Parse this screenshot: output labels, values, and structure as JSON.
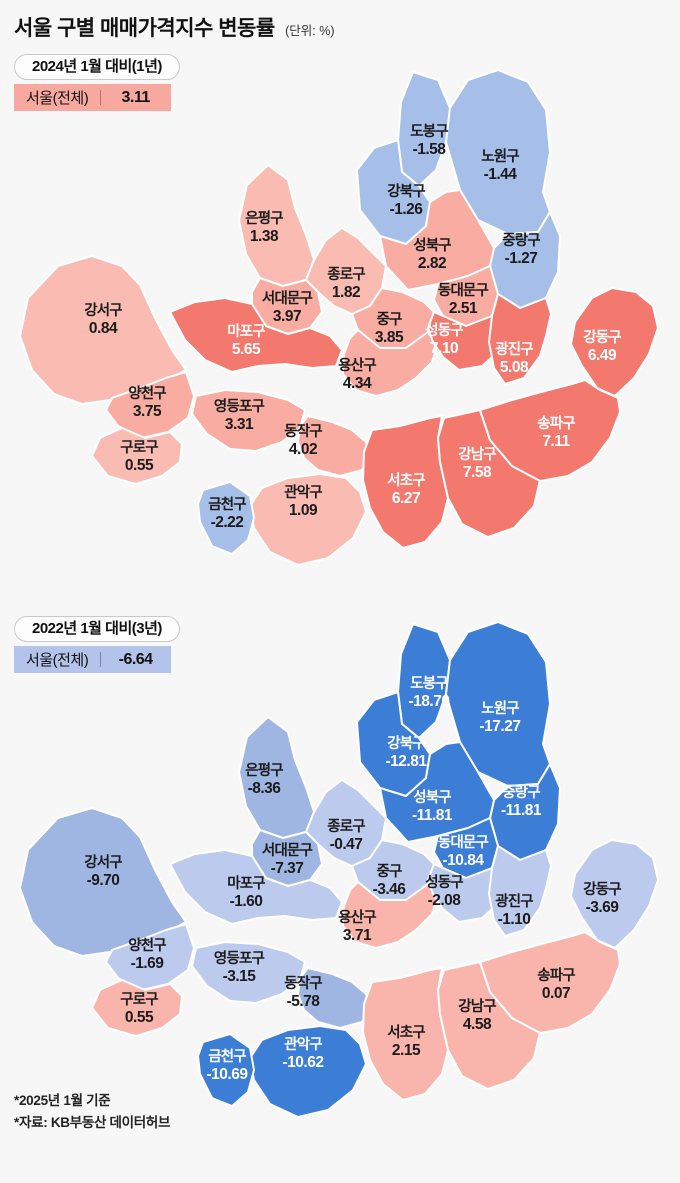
{
  "title": {
    "main": "서울 구별 매매가격지수 변동률",
    "unit": "(단위: %)"
  },
  "colors": {
    "background": "#f7f7f8",
    "map1_positive_high": "#f3786d",
    "map1_positive_mid": "#f8aca2",
    "map1_positive_low": "#fabcb2",
    "map1_negative": "#a6bfe8",
    "map2_negative_high": "#3c7ed6",
    "map2_negative_mid": "#9fb6e3",
    "map2_negative_low": "#bccaee",
    "map2_positive": "#f9b5ab",
    "border": "#ffffff"
  },
  "maps": [
    {
      "id": "map1",
      "badge": "2024년 1월 대비(1년)",
      "summary_label": "서울(전체)",
      "summary_value": "3.11",
      "summary_bg": "#f8a99f",
      "districts": [
        {
          "key": "dobong",
          "name": "도봉구",
          "value": "-1.58",
          "fill": "#a6bfe8",
          "text": "#1b1b1b"
        },
        {
          "key": "nowon",
          "name": "노원구",
          "value": "-1.44",
          "fill": "#a6bfe8",
          "text": "#1b1b1b"
        },
        {
          "key": "gangbuk",
          "name": "강북구",
          "value": "-1.26",
          "fill": "#a6bfe8",
          "text": "#1b1b1b"
        },
        {
          "key": "jungnang",
          "name": "중랑구",
          "value": "-1.27",
          "fill": "#a6bfe8",
          "text": "#1b1b1b"
        },
        {
          "key": "seongbuk",
          "name": "성북구",
          "value": "2.82",
          "fill": "#f8aca2",
          "text": "#1b1b1b"
        },
        {
          "key": "dongdaemun",
          "name": "동대문구",
          "value": "2.51",
          "fill": "#f8aca2",
          "text": "#1b1b1b"
        },
        {
          "key": "eunpyeong",
          "name": "은평구",
          "value": "1.38",
          "fill": "#fabcb2",
          "text": "#1b1b1b"
        },
        {
          "key": "jongno",
          "name": "종로구",
          "value": "1.82",
          "fill": "#fabcb2",
          "text": "#1b1b1b"
        },
        {
          "key": "seodaemun",
          "name": "서대문구",
          "value": "3.97",
          "fill": "#f8aca2",
          "text": "#1b1b1b"
        },
        {
          "key": "jung",
          "name": "중구",
          "value": "3.85",
          "fill": "#f8aca2",
          "text": "#1b1b1b"
        },
        {
          "key": "mapo",
          "name": "마포구",
          "value": "5.65",
          "fill": "#f3786d",
          "text": "#ffffff"
        },
        {
          "key": "yongsan",
          "name": "용산구",
          "value": "4.34",
          "fill": "#f8aca2",
          "text": "#1b1b1b"
        },
        {
          "key": "seongdong",
          "name": "성동구",
          "value": "7.10",
          "fill": "#f3786d",
          "text": "#ffffff"
        },
        {
          "key": "gwangjin",
          "name": "광진구",
          "value": "5.08",
          "fill": "#f3786d",
          "text": "#ffffff"
        },
        {
          "key": "gangdong",
          "name": "강동구",
          "value": "6.49",
          "fill": "#f3786d",
          "text": "#ffffff"
        },
        {
          "key": "gangseo",
          "name": "강서구",
          "value": "0.84",
          "fill": "#fabcb2",
          "text": "#1b1b1b"
        },
        {
          "key": "yangcheon",
          "name": "양천구",
          "value": "3.75",
          "fill": "#f8aca2",
          "text": "#1b1b1b"
        },
        {
          "key": "yeongdeungpo",
          "name": "영등포구",
          "value": "3.31",
          "fill": "#f8aca2",
          "text": "#1b1b1b"
        },
        {
          "key": "dongjak",
          "name": "동작구",
          "value": "4.02",
          "fill": "#f8aca2",
          "text": "#1b1b1b"
        },
        {
          "key": "gwanak",
          "name": "관악구",
          "value": "1.09",
          "fill": "#fabcb2",
          "text": "#1b1b1b"
        },
        {
          "key": "guro",
          "name": "구로구",
          "value": "0.55",
          "fill": "#fabcb2",
          "text": "#1b1b1b"
        },
        {
          "key": "geumcheon",
          "name": "금천구",
          "value": "-2.22",
          "fill": "#a6bfe8",
          "text": "#1b1b1b"
        },
        {
          "key": "seocho",
          "name": "서초구",
          "value": "6.27",
          "fill": "#f3786d",
          "text": "#ffffff"
        },
        {
          "key": "gangnam",
          "name": "강남구",
          "value": "7.58",
          "fill": "#f3786d",
          "text": "#ffffff"
        },
        {
          "key": "songpa",
          "name": "송파구",
          "value": "7.11",
          "fill": "#f3786d",
          "text": "#ffffff"
        }
      ]
    },
    {
      "id": "map2",
      "badge": "2022년 1월 대비(3년)",
      "summary_label": "서울(전체)",
      "summary_value": "-6.64",
      "summary_bg": "#b3c3ea",
      "districts": [
        {
          "key": "dobong",
          "name": "도봉구",
          "value": "-18.70",
          "fill": "#3c7ed6",
          "text": "#ffffff"
        },
        {
          "key": "nowon",
          "name": "노원구",
          "value": "-17.27",
          "fill": "#3c7ed6",
          "text": "#ffffff"
        },
        {
          "key": "gangbuk",
          "name": "강북구",
          "value": "-12.81",
          "fill": "#3c7ed6",
          "text": "#ffffff"
        },
        {
          "key": "jungnang",
          "name": "중랑구",
          "value": "-11.81",
          "fill": "#3c7ed6",
          "text": "#ffffff"
        },
        {
          "key": "seongbuk",
          "name": "성북구",
          "value": "-11.81",
          "fill": "#3c7ed6",
          "text": "#ffffff"
        },
        {
          "key": "dongdaemun",
          "name": "동대문구",
          "value": "-10.84",
          "fill": "#3c7ed6",
          "text": "#ffffff"
        },
        {
          "key": "eunpyeong",
          "name": "은평구",
          "value": "-8.36",
          "fill": "#9fb6e3",
          "text": "#1b1b1b"
        },
        {
          "key": "jongno",
          "name": "종로구",
          "value": "-0.47",
          "fill": "#bccaee",
          "text": "#1b1b1b"
        },
        {
          "key": "seodaemun",
          "name": "서대문구",
          "value": "-7.37",
          "fill": "#9fb6e3",
          "text": "#1b1b1b"
        },
        {
          "key": "jung",
          "name": "중구",
          "value": "-3.46",
          "fill": "#bccaee",
          "text": "#1b1b1b"
        },
        {
          "key": "mapo",
          "name": "마포구",
          "value": "-1.60",
          "fill": "#bccaee",
          "text": "#1b1b1b"
        },
        {
          "key": "yongsan",
          "name": "용산구",
          "value": "3.71",
          "fill": "#f9b5ab",
          "text": "#1b1b1b"
        },
        {
          "key": "seongdong",
          "name": "성동구",
          "value": "-2.08",
          "fill": "#bccaee",
          "text": "#1b1b1b"
        },
        {
          "key": "gwangjin",
          "name": "광진구",
          "value": "-1.10",
          "fill": "#bccaee",
          "text": "#1b1b1b"
        },
        {
          "key": "gangdong",
          "name": "강동구",
          "value": "-3.69",
          "fill": "#bccaee",
          "text": "#1b1b1b"
        },
        {
          "key": "gangseo",
          "name": "강서구",
          "value": "-9.70",
          "fill": "#9fb6e3",
          "text": "#1b1b1b"
        },
        {
          "key": "yangcheon",
          "name": "양천구",
          "value": "-1.69",
          "fill": "#bccaee",
          "text": "#1b1b1b"
        },
        {
          "key": "yeongdeungpo",
          "name": "영등포구",
          "value": "-3.15",
          "fill": "#bccaee",
          "text": "#1b1b1b"
        },
        {
          "key": "dongjak",
          "name": "동작구",
          "value": "-5.78",
          "fill": "#9fb6e3",
          "text": "#1b1b1b"
        },
        {
          "key": "gwanak",
          "name": "관악구",
          "value": "-10.62",
          "fill": "#3c7ed6",
          "text": "#ffffff"
        },
        {
          "key": "guro",
          "name": "구로구",
          "value": "0.55",
          "fill": "#f9b5ab",
          "text": "#1b1b1b"
        },
        {
          "key": "geumcheon",
          "name": "금천구",
          "value": "-10.69",
          "fill": "#3c7ed6",
          "text": "#ffffff"
        },
        {
          "key": "seocho",
          "name": "서초구",
          "value": "2.15",
          "fill": "#f9b5ab",
          "text": "#1b1b1b"
        },
        {
          "key": "gangnam",
          "name": "강남구",
          "value": "4.58",
          "fill": "#f9b5ab",
          "text": "#1b1b1b"
        },
        {
          "key": "songpa",
          "name": "송파구",
          "value": "0.07",
          "fill": "#f9b5ab",
          "text": "#1b1b1b"
        }
      ]
    }
  ],
  "footnotes": [
    "*2025년 1월 기준",
    "*자료: KB부동산 데이터허브"
  ]
}
